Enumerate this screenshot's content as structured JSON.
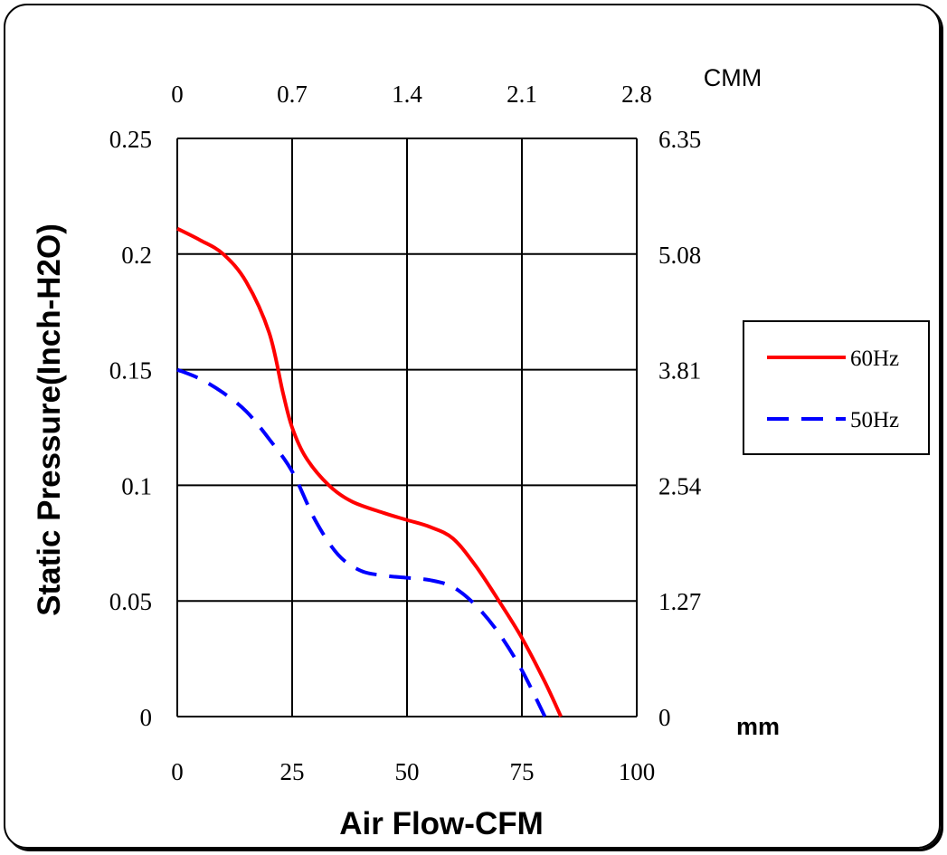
{
  "chart_data": {
    "type": "line",
    "xlabel": "Air Flow-CFM",
    "ylabel": "Static Pressure(Inch-H2O)",
    "x2_unit": "CMM",
    "y2_unit": "mm",
    "xlim": [
      0,
      100
    ],
    "ylim": [
      0,
      0.25
    ],
    "x_ticks": [
      "0",
      "25",
      "50",
      "75",
      "100"
    ],
    "x2_ticks": [
      "0",
      "0.7",
      "1.4",
      "2.1",
      "2.8"
    ],
    "y_ticks": [
      "0",
      "0.05",
      "0.1",
      "0.15",
      "0.2",
      "0.25"
    ],
    "y2_ticks": [
      "0",
      "1.27",
      "2.54",
      "3.81",
      "5.08",
      "6.35"
    ],
    "grid": true,
    "legend": "right",
    "series": [
      {
        "name": "60Hz",
        "color": "#ff0000",
        "style": "solid",
        "x": [
          0,
          5,
          10,
          15,
          20,
          23,
          25,
          28,
          33,
          38,
          45,
          50,
          55,
          60,
          65,
          70,
          75,
          80,
          83.5
        ],
        "y": [
          0.211,
          0.206,
          0.2,
          0.188,
          0.166,
          0.14,
          0.125,
          0.112,
          0.1,
          0.093,
          0.088,
          0.085,
          0.082,
          0.077,
          0.065,
          0.05,
          0.034,
          0.015,
          0.0
        ]
      },
      {
        "name": "50Hz",
        "color": "#0000ff",
        "style": "dashed",
        "x": [
          0,
          5,
          10,
          15,
          20,
          25,
          30,
          35,
          40,
          45,
          50,
          55,
          60,
          65,
          70,
          75,
          80
        ],
        "y": [
          0.15,
          0.146,
          0.14,
          0.132,
          0.12,
          0.106,
          0.085,
          0.07,
          0.063,
          0.061,
          0.06,
          0.059,
          0.056,
          0.048,
          0.036,
          0.02,
          0.0
        ]
      }
    ]
  }
}
